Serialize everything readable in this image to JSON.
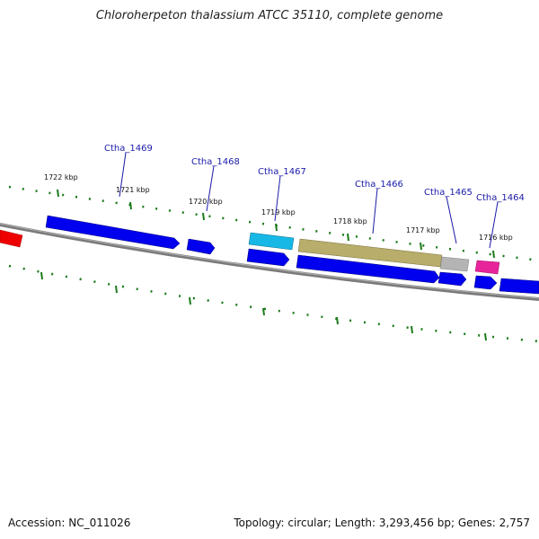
{
  "title": "Chloroherpeton thalassium ATCC 35110, complete genome",
  "footer": {
    "accession": "Accession: NC_011026",
    "topology": "Topology: circular; Length: 3,293,456 bp; Genes: 2,757"
  },
  "scale_labels": [
    "1722 kbp",
    "1721 kbp",
    "1720 kbp",
    "1719 kbp",
    "1718 kbp",
    "1717 kbp",
    "1716 kbp"
  ],
  "gene_labels": [
    "Ctha_1469",
    "Ctha_1468",
    "Ctha_1467",
    "Ctha_1466",
    "Ctha_1465",
    "Ctha_1464"
  ],
  "colors": {
    "backbone": "#808080",
    "cds": "#0000ee",
    "red_feature": "#ee0000",
    "cyan_feature": "#17b8e6",
    "olive_feature": "#b8ad6a",
    "grey_feature": "#b4b4b4",
    "pink_feature": "#e8249a",
    "tick": "#1a7a1a",
    "label_line": "#1a1aa8"
  }
}
